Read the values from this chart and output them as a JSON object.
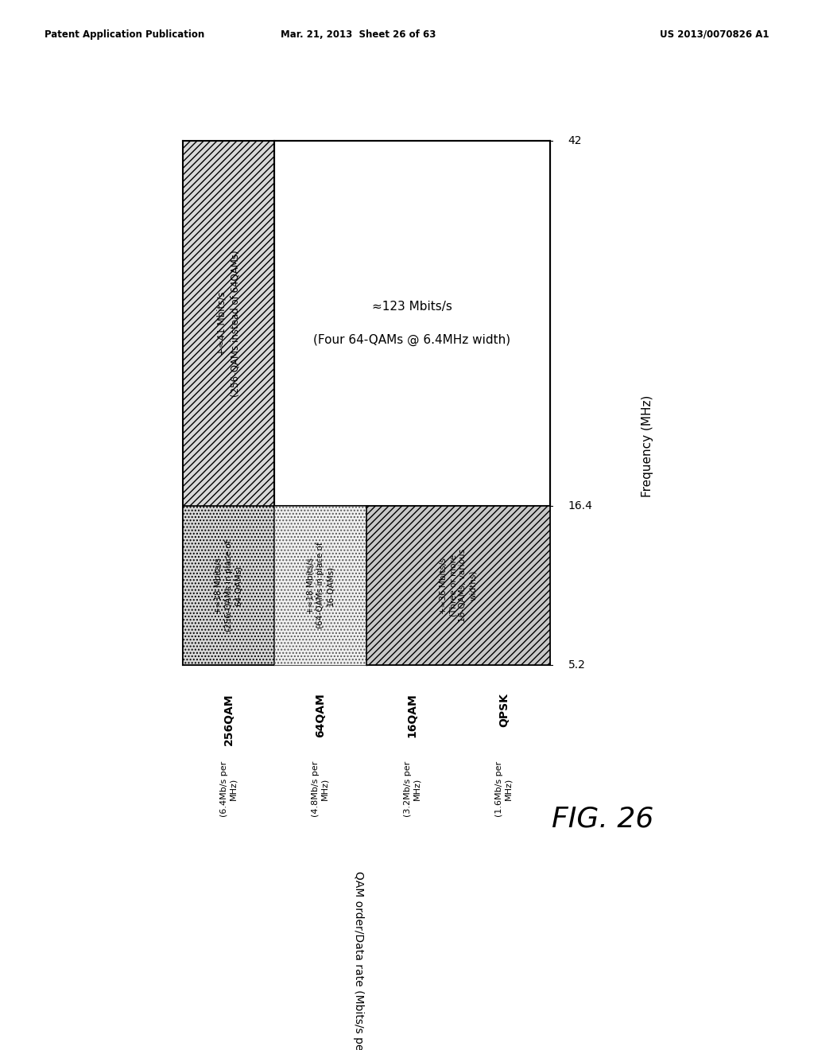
{
  "header_left": "Patent Application Publication",
  "header_mid": "Mar. 21, 2013  Sheet 26 of 63",
  "header_right": "US 2013/0070826 A1",
  "fig_label": "FIG. 26",
  "y_axis_label": "Frequency (MHz)",
  "x_axis_label": "QAM order/Data rate (Mbits/s per MHz)",
  "y_ticks": [
    5.2,
    16.4,
    42
  ],
  "x_labels": [
    {
      "label": "256QAM",
      "sublabel": "(6.4Mb/s per\nMHz)"
    },
    {
      "label": "64QAM",
      "sublabel": "(4.8Mb/s per\nMHz)"
    },
    {
      "label": "16QAM",
      "sublabel": "(3.2Mb/s per\nMHz)"
    },
    {
      "label": "QPSK",
      "sublabel": "(1.6Mb/s per\nMHz)"
    }
  ],
  "background_color": "#ffffff",
  "text_color": "#000000",
  "box1_label_line1": "+≈41 Mbits/s",
  "box1_label_line2": "(256-QAMs instead of 64QAMs)",
  "box2_label_line1": "≈123 Mbits/s",
  "box2_label_line2": "(Four 64-QAMs @ 6.4MHz width)",
  "box3_label_line1": "+≈18 Mbits/s",
  "box3_label_line2": "(256-QAMs in place of",
  "box3_label_line3": "64-QAMs)",
  "box4_label_line1": "+≈18 Mbits/s",
  "box4_label_line2": "(64-QAMs in place of",
  "box4_label_line3": "16-QAMs)",
  "box5_label_line1": "+≈36 Mbits/s",
  "box5_label_line2": "(Three or more",
  "box5_label_line3": "16-QAMs, various",
  "box5_label_line4": "widths)"
}
